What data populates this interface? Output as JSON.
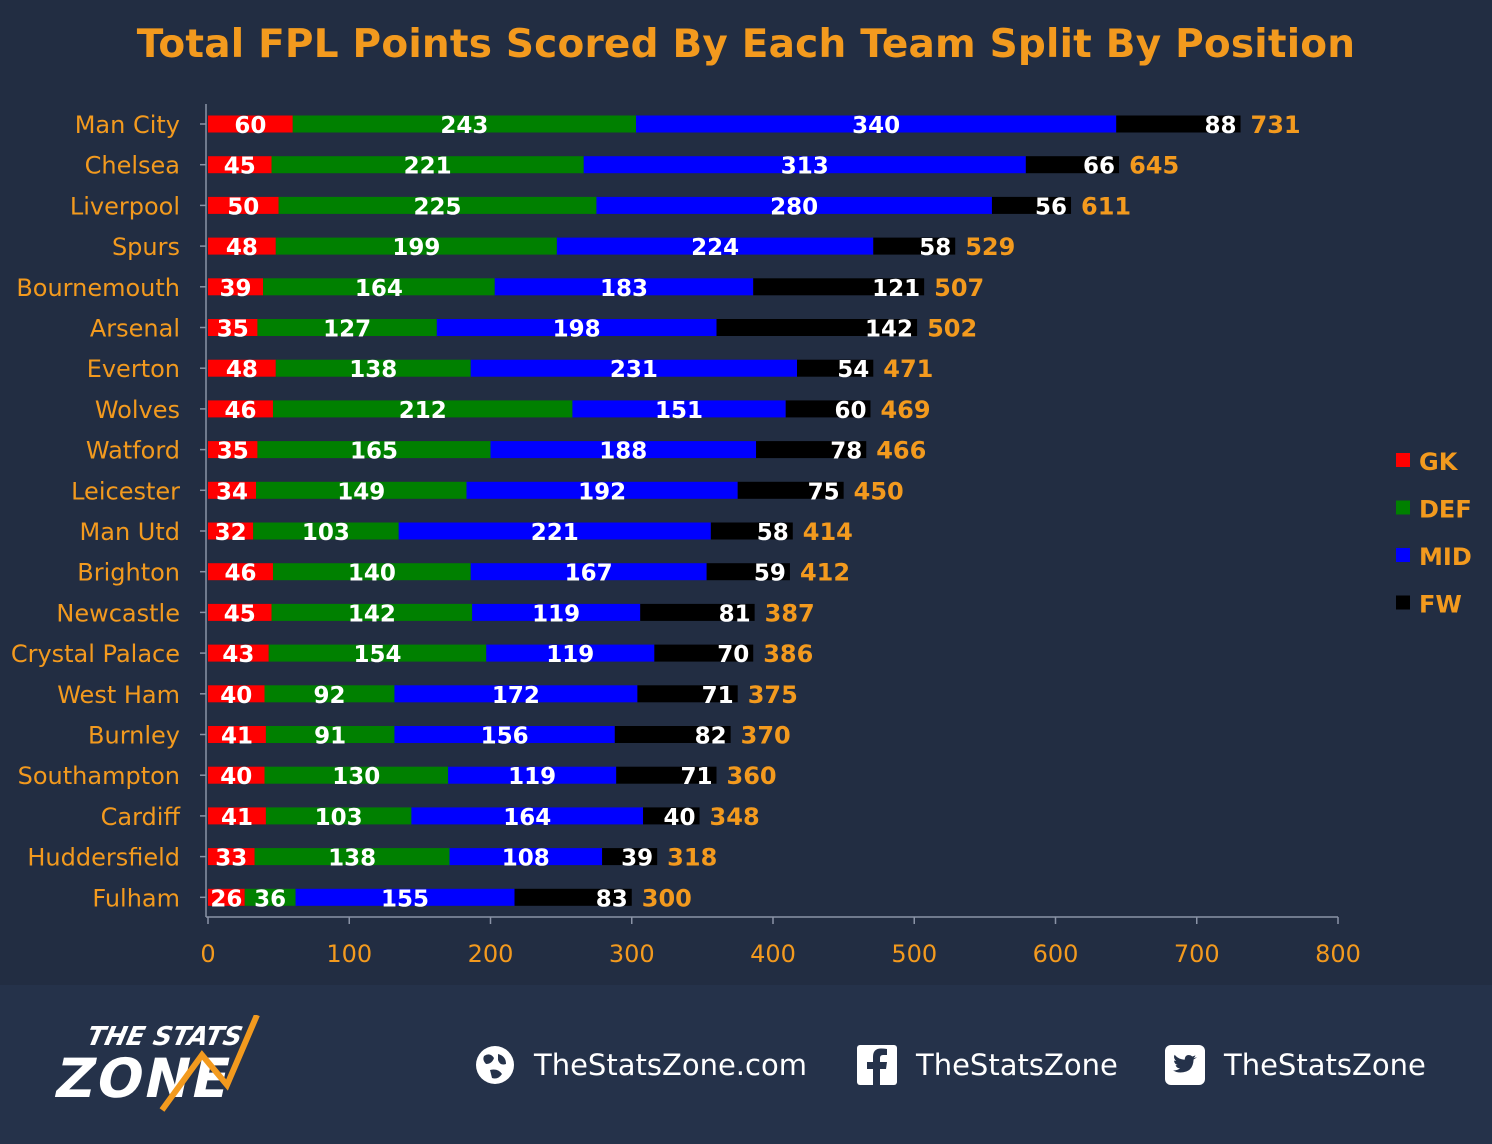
{
  "chart_data": {
    "type": "bar",
    "orientation": "horizontal",
    "stacked": true,
    "title": "Total FPL Points Scored By Each Team Split By Position",
    "categories": [
      "Man City",
      "Chelsea",
      "Liverpool",
      "Spurs",
      "Bournemouth",
      "Arsenal",
      "Everton",
      "Wolves",
      "Watford",
      "Leicester",
      "Man Utd",
      "Brighton",
      "Newcastle",
      "Crystal Palace",
      "West Ham",
      "Burnley",
      "Southampton",
      "Cardiff",
      "Huddersfield",
      "Fulham"
    ],
    "series": [
      {
        "name": "GK",
        "color": "#ff0000",
        "values": [
          60,
          45,
          50,
          48,
          39,
          35,
          48,
          46,
          35,
          34,
          32,
          46,
          45,
          43,
          40,
          41,
          40,
          41,
          33,
          26
        ]
      },
      {
        "name": "DEF",
        "color": "#008000",
        "values": [
          243,
          221,
          225,
          199,
          164,
          127,
          138,
          212,
          165,
          149,
          103,
          140,
          142,
          154,
          92,
          91,
          130,
          103,
          138,
          36
        ]
      },
      {
        "name": "MID",
        "color": "#0000ff",
        "values": [
          340,
          313,
          280,
          224,
          183,
          198,
          231,
          151,
          188,
          192,
          221,
          167,
          119,
          119,
          172,
          156,
          119,
          164,
          108,
          155
        ]
      },
      {
        "name": "FW",
        "color": "#000000",
        "values": [
          88,
          66,
          56,
          58,
          121,
          142,
          54,
          60,
          78,
          75,
          58,
          59,
          81,
          70,
          71,
          82,
          71,
          40,
          39,
          83
        ]
      }
    ],
    "totals": [
      731,
      645,
      611,
      529,
      507,
      502,
      471,
      469,
      466,
      450,
      414,
      412,
      387,
      386,
      375,
      370,
      360,
      348,
      318,
      300
    ],
    "xlim": [
      0,
      800
    ],
    "xticks": [
      "0",
      "100",
      "200",
      "300",
      "400",
      "500",
      "600",
      "700",
      "800"
    ],
    "legend_position": "right",
    "grid": false,
    "colors": {
      "background": "#222d42",
      "accent": "#f39a1e",
      "segment_label": "#ffffff"
    }
  },
  "footer": {
    "brand_line1": "THE STATS",
    "brand_line2": "ZONE",
    "website": "TheStatsZone.com",
    "facebook": "TheStatsZone",
    "twitter": "TheStatsZone"
  }
}
